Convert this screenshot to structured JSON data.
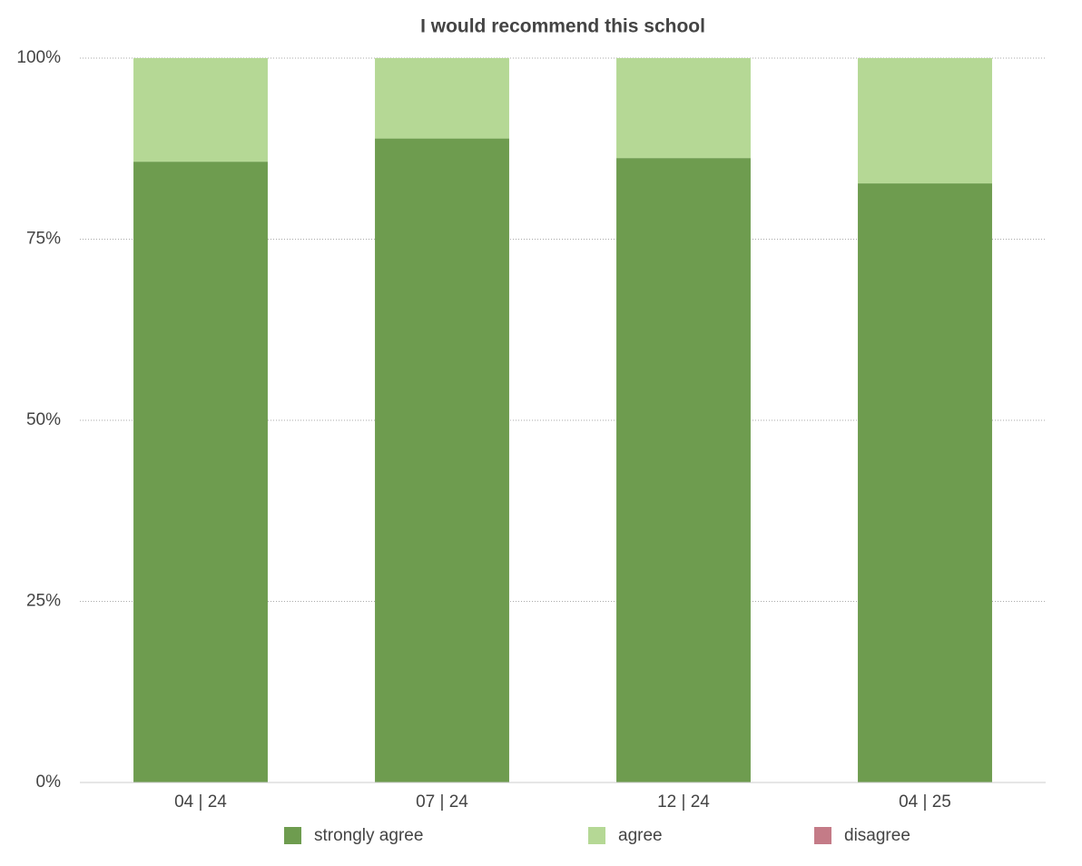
{
  "chart_data": {
    "type": "stacked_bar",
    "title": "I would recommend this school",
    "categories": [
      "04 | 24",
      "07 | 24",
      "12 | 24",
      "04 | 25"
    ],
    "series": [
      {
        "name": "strongly agree",
        "color": "#6e9c4f",
        "values": [
          85.7,
          88.9,
          86.2,
          82.7
        ]
      },
      {
        "name": "agree",
        "color": "#b5d895",
        "values": [
          14.3,
          11.1,
          13.8,
          17.3
        ]
      },
      {
        "name": "disagree",
        "color": "#c47b87",
        "values": [
          0,
          0,
          0,
          0
        ]
      }
    ],
    "ylim": [
      0,
      100
    ],
    "yticks": [
      {
        "value": 0,
        "label": "0%"
      },
      {
        "value": 25,
        "label": "25%"
      },
      {
        "value": 50,
        "label": "50%"
      },
      {
        "value": 75,
        "label": "75%"
      },
      {
        "value": 100,
        "label": "100%"
      }
    ],
    "grid": true,
    "legend": "bottom"
  }
}
